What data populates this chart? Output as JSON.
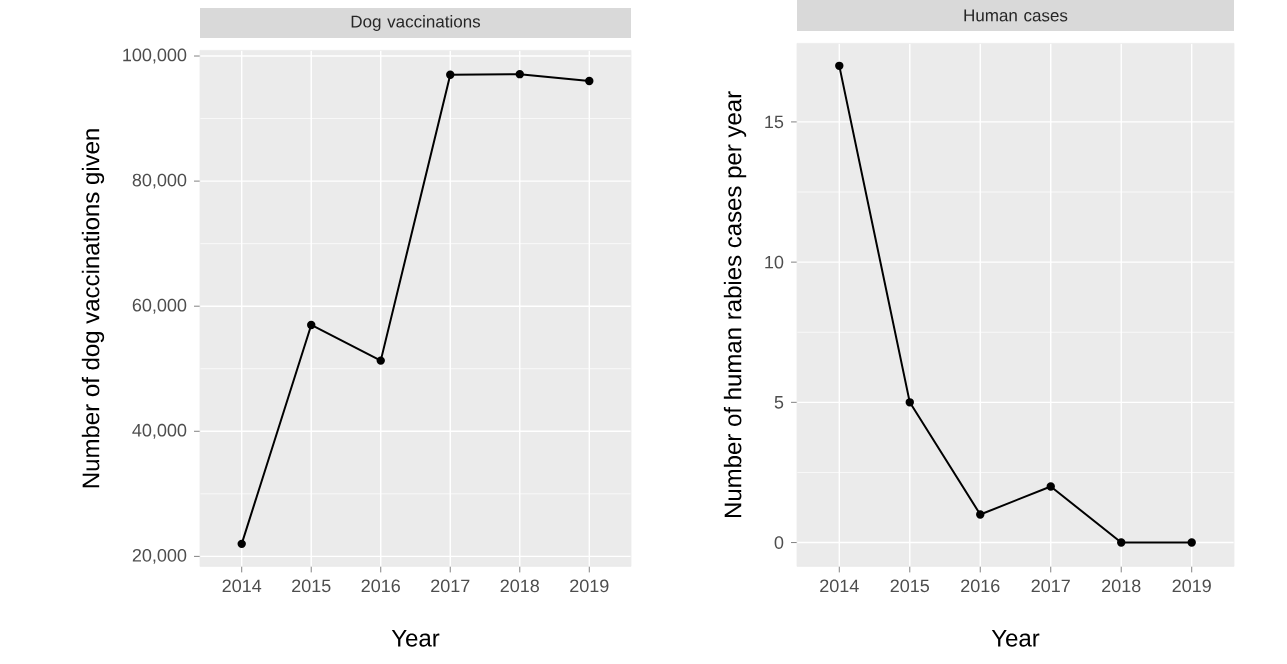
{
  "chart_data": [
    {
      "type": "line",
      "title": "Dog vaccinations",
      "xlabel": "Year",
      "ylabel": "Number of dog vaccinations given",
      "x": [
        2014,
        2015,
        2016,
        2017,
        2018,
        2019
      ],
      "values": [
        22000,
        57000,
        51300,
        97000,
        97100,
        96000
      ],
      "color": "#000000",
      "xlim": [
        2013.4,
        2019.6
      ],
      "ylim": [
        18400,
        100900
      ],
      "xticks": [
        2014,
        2015,
        2016,
        2017,
        2018,
        2019
      ],
      "yticks": [
        {
          "value": 20000,
          "label": "20,000"
        },
        {
          "value": 40000,
          "label": "40,000"
        },
        {
          "value": 60000,
          "label": "60,000"
        },
        {
          "value": 80000,
          "label": "80,000"
        },
        {
          "value": 100000,
          "label": "100,000"
        }
      ],
      "grid": true,
      "marker": "circle",
      "line_style": "solid"
    },
    {
      "type": "line",
      "title": "Human cases",
      "xlabel": "Year",
      "ylabel": "Number of human rabies cases per year",
      "x": [
        2014,
        2015,
        2016,
        2017,
        2018,
        2019
      ],
      "values": [
        17,
        5,
        1,
        2,
        0,
        0
      ],
      "color": "#000000",
      "xlim": [
        2013.4,
        2019.6
      ],
      "ylim": [
        -0.85,
        17.8
      ],
      "xticks": [
        2014,
        2015,
        2016,
        2017,
        2018,
        2019
      ],
      "yticks": [
        0,
        5,
        10,
        15
      ],
      "grid": true,
      "marker": "circle",
      "line_style": "solid"
    }
  ]
}
